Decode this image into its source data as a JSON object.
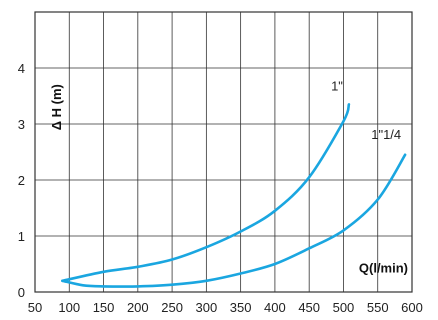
{
  "chart_data": {
    "type": "line",
    "xlabel": "Q(l/min)",
    "ylabel": "Δ H (m)",
    "xlim": [
      50,
      600
    ],
    "ylim": [
      0,
      5
    ],
    "x_ticks": [
      "50",
      "100",
      "150",
      "200",
      "250",
      "300",
      "350",
      "400",
      "450",
      "500",
      "550",
      "600"
    ],
    "y_ticks": [
      "0",
      "1",
      "2",
      "3",
      "4"
    ],
    "grid": true,
    "series_color": "#1aa6e0",
    "series": [
      {
        "name": "1\"",
        "x": [
          90,
          150,
          200,
          250,
          300,
          350,
          400,
          450,
          500,
          508
        ],
        "y": [
          0.2,
          0.36,
          0.45,
          0.58,
          0.8,
          1.08,
          1.45,
          2.05,
          3.05,
          3.35
        ]
      },
      {
        "name": "1\"1/4",
        "x": [
          90,
          120,
          150,
          200,
          250,
          300,
          350,
          400,
          450,
          500,
          550,
          590
        ],
        "y": [
          0.2,
          0.12,
          0.1,
          0.1,
          0.13,
          0.2,
          0.33,
          0.5,
          0.78,
          1.1,
          1.65,
          2.45
        ]
      }
    ]
  }
}
